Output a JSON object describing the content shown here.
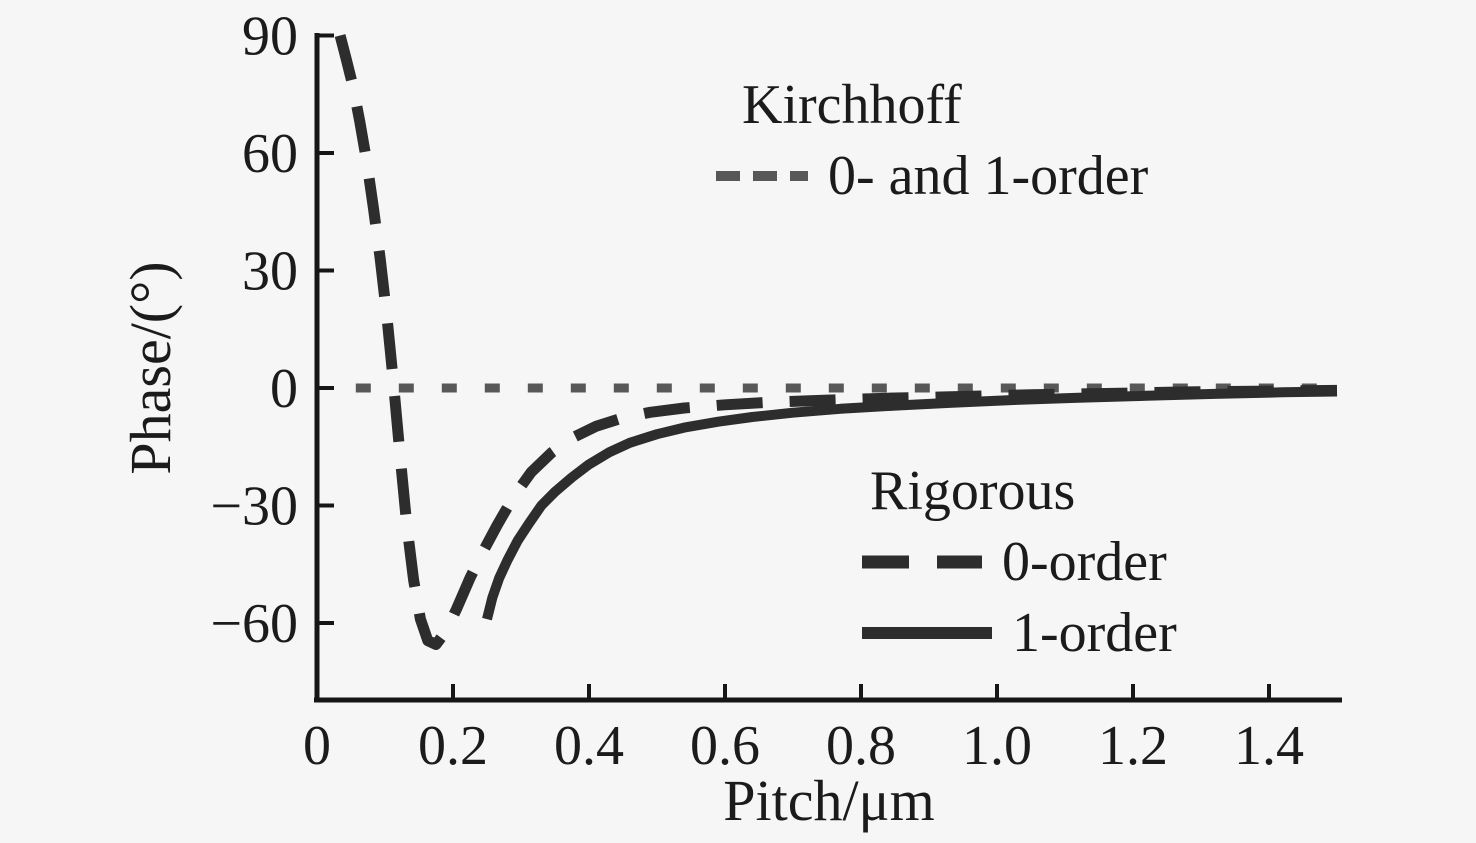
{
  "chart_data": {
    "type": "line",
    "title": "",
    "xlabel": "Pitch/μm",
    "ylabel": "Phase/(°)",
    "xlim": [
      0,
      1.507
    ],
    "ylim": [
      -79.7,
      90
    ],
    "x_ticks": [
      0.2,
      0.4,
      0.6,
      0.8,
      1.0,
      1.2,
      1.4
    ],
    "x_tick_labels_all": [
      {
        "value": 0,
        "label": "0"
      },
      {
        "value": 0.2,
        "label": "0.2"
      },
      {
        "value": 0.4,
        "label": "0.4"
      },
      {
        "value": 0.6,
        "label": "0.6"
      },
      {
        "value": 0.8,
        "label": "0.8"
      },
      {
        "value": 1.0,
        "label": "1.0"
      },
      {
        "value": 1.2,
        "label": "1.2"
      },
      {
        "value": 1.4,
        "label": "1.4"
      }
    ],
    "y_ticks": [
      {
        "value": 90,
        "label": "90"
      },
      {
        "value": 60,
        "label": "60"
      },
      {
        "value": 30,
        "label": "30"
      },
      {
        "value": 0,
        "label": "0"
      },
      {
        "value": -30,
        "label": "−30"
      },
      {
        "value": -60,
        "label": "−60"
      }
    ],
    "grid": false,
    "legend_position": "inside: Kirchhoff block top-center, Rigorous block middle-right",
    "legend": {
      "kirchhoff": {
        "title": "Kirchhoff",
        "item": "0- and 1-order"
      },
      "rigorous": {
        "title": "Rigorous",
        "item0": "0-order",
        "item1": "1-order"
      }
    },
    "series": [
      {
        "name": "Kirchhoff 0- and 1-order",
        "style": "dotted",
        "color": "#585858",
        "points": [
          [
            0.057,
            0
          ],
          [
            1.503,
            0
          ]
        ]
      },
      {
        "name": "Rigorous 0-order",
        "style": "dashed",
        "color": "#2d2d2d",
        "points": [
          [
            0.034,
            90
          ],
          [
            0.043,
            84
          ],
          [
            0.053,
            77
          ],
          [
            0.063,
            68
          ],
          [
            0.073,
            58
          ],
          [
            0.083,
            46
          ],
          [
            0.093,
            33
          ],
          [
            0.103,
            18
          ],
          [
            0.112,
            2
          ],
          [
            0.122,
            -17
          ],
          [
            0.132,
            -35
          ],
          [
            0.142,
            -49
          ],
          [
            0.152,
            -59
          ],
          [
            0.163,
            -64.5
          ],
          [
            0.175,
            -65.5
          ],
          [
            0.19,
            -62
          ],
          [
            0.205,
            -56.5
          ],
          [
            0.225,
            -48.5
          ],
          [
            0.245,
            -41.5
          ],
          [
            0.265,
            -35
          ],
          [
            0.29,
            -27.5
          ],
          [
            0.315,
            -21.5
          ],
          [
            0.345,
            -16.5
          ],
          [
            0.375,
            -12.8
          ],
          [
            0.41,
            -9.8
          ],
          [
            0.45,
            -7.6
          ],
          [
            0.49,
            -6.2
          ],
          [
            0.54,
            -5.1
          ],
          [
            0.6,
            -4.3
          ],
          [
            0.67,
            -3.6
          ],
          [
            0.75,
            -3.1
          ],
          [
            0.84,
            -2.6
          ],
          [
            0.94,
            -2.2
          ],
          [
            1.05,
            -1.7
          ],
          [
            1.16,
            -1.4
          ],
          [
            1.28,
            -1.0
          ],
          [
            1.4,
            -0.8
          ],
          [
            1.5,
            -0.6
          ]
        ]
      },
      {
        "name": "Rigorous 1-order",
        "style": "solid",
        "color": "#2d2d2d",
        "points": [
          [
            0.25,
            -59
          ],
          [
            0.258,
            -53.5
          ],
          [
            0.268,
            -48.5
          ],
          [
            0.28,
            -44
          ],
          [
            0.295,
            -39
          ],
          [
            0.312,
            -34.5
          ],
          [
            0.33,
            -30
          ],
          [
            0.35,
            -26.5
          ],
          [
            0.375,
            -22.8
          ],
          [
            0.4,
            -19.5
          ],
          [
            0.43,
            -16.4
          ],
          [
            0.46,
            -14
          ],
          [
            0.5,
            -11.8
          ],
          [
            0.54,
            -10.1
          ],
          [
            0.59,
            -8.6
          ],
          [
            0.64,
            -7.4
          ],
          [
            0.7,
            -6.3
          ],
          [
            0.77,
            -5.3
          ],
          [
            0.85,
            -4.5
          ],
          [
            0.93,
            -3.8
          ],
          [
            1.02,
            -3.1
          ],
          [
            1.12,
            -2.5
          ],
          [
            1.22,
            -2.0
          ],
          [
            1.32,
            -1.5
          ],
          [
            1.42,
            -1.1
          ],
          [
            1.5,
            -0.9
          ]
        ]
      }
    ]
  }
}
